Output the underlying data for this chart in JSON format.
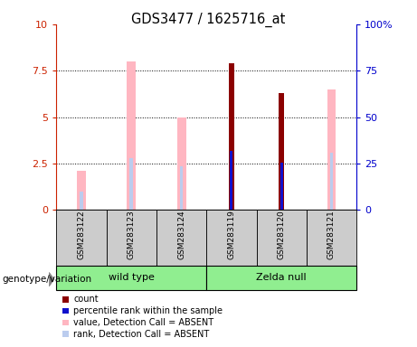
{
  "title": "GDS3477 / 1625716_at",
  "samples": [
    "GSM283122",
    "GSM283123",
    "GSM283124",
    "GSM283119",
    "GSM283120",
    "GSM283121"
  ],
  "ylim_left": [
    0,
    10
  ],
  "ylim_right": [
    0,
    100
  ],
  "yticks_left": [
    0,
    2.5,
    5.0,
    7.5,
    10
  ],
  "ytick_labels_left": [
    "0",
    "2.5",
    "5",
    "7.5",
    "10"
  ],
  "ytick_labels_right": [
    "0",
    "25",
    "50",
    "75",
    "100%"
  ],
  "count_values": [
    0,
    0,
    0,
    7.9,
    6.3,
    0
  ],
  "percentile_values": [
    0,
    0,
    0,
    3.2,
    2.55,
    0
  ],
  "absent_value_values": [
    2.1,
    8.0,
    5.0,
    0,
    0,
    6.5
  ],
  "absent_rank_values": [
    1.0,
    2.8,
    2.35,
    0,
    0,
    3.1
  ],
  "count_color": "#8B0000",
  "percentile_color": "#1010CC",
  "absent_value_color": "#FFB6C1",
  "absent_rank_color": "#BBCCEE",
  "left_axis_color": "#CC2200",
  "right_axis_color": "#0000CC",
  "legend_labels": [
    "count",
    "percentile rank within the sample",
    "value, Detection Call = ABSENT",
    "rank, Detection Call = ABSENT"
  ],
  "legend_colors": [
    "#8B0000",
    "#1010CC",
    "#FFB6C1",
    "#BBCCEE"
  ],
  "group1_label": "wild type",
  "group2_label": "Zelda null",
  "group_color": "#90EE90",
  "sample_bg_color": "#CCCCCC",
  "genotype_label": "genotype/variation"
}
